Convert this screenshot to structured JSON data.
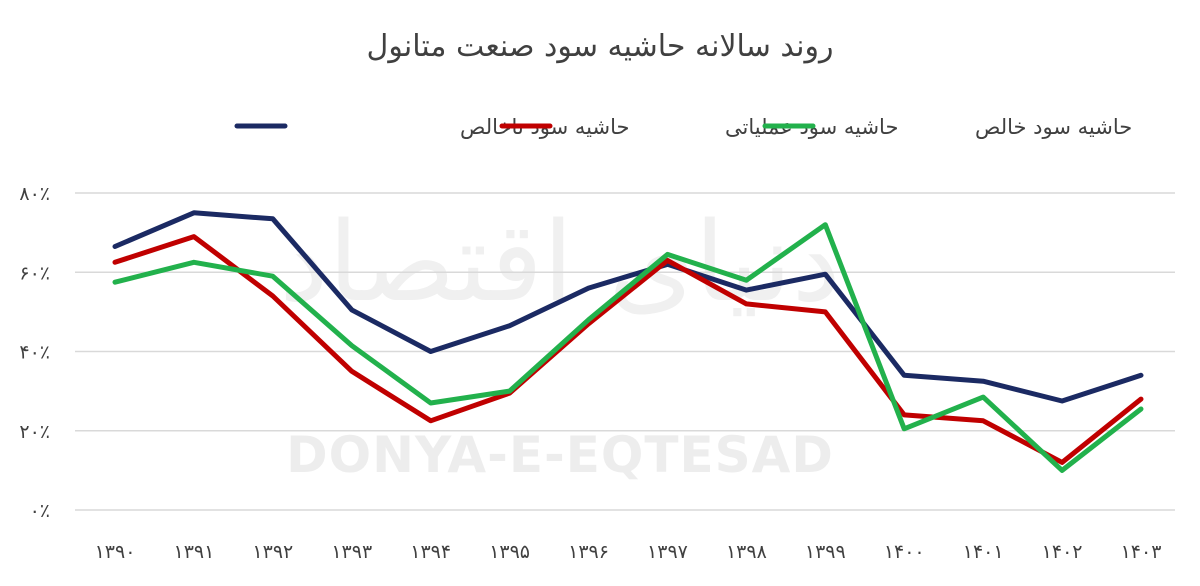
{
  "chart_data": {
    "type": "line",
    "title": "روند سالانه حاشیه سود صنعت متانول",
    "categories": [
      "۱۳۹۰",
      "۱۳۹۱",
      "۱۳۹۲",
      "۱۳۹۳",
      "۱۳۹۴",
      "۱۳۹۵",
      "۱۳۹۶",
      "۱۳۹۷",
      "۱۳۹۸",
      "۱۳۹۹",
      "۱۴۰۰",
      "۱۴۰۱",
      "۱۴۰۲",
      "۱۴۰۳"
    ],
    "y_ticks": [
      "۰٪",
      "۲۰٪",
      "۴۰٪",
      "۶۰٪",
      "۸۰٪"
    ],
    "ylim": [
      0,
      80
    ],
    "grid": true,
    "legend_position": "top-center",
    "series": [
      {
        "name": "حاشیه سود ناخالص",
        "color": "#1b2a63",
        "values": [
          66.5,
          75,
          73.5,
          50.5,
          40,
          46.5,
          56,
          62,
          55.5,
          59.5,
          34,
          32.5,
          27.5,
          34
        ]
      },
      {
        "name": "حاشیه سود عملیاتی",
        "color": "#c00000",
        "values": [
          62.5,
          69,
          54,
          35,
          22.5,
          29.5,
          47,
          63,
          52,
          50,
          24,
          22.5,
          12,
          28
        ]
      },
      {
        "name": "حاشیه سود خالص",
        "color": "#22b14c",
        "values": [
          57.5,
          62.5,
          59,
          41.5,
          27,
          30,
          48,
          64.5,
          58,
          72,
          20.5,
          28.5,
          10,
          25.5
        ]
      }
    ]
  },
  "watermark": {
    "text_en": "DONYA-E-EQTESAD",
    "text_fa": "دنیای اقتصاد"
  }
}
